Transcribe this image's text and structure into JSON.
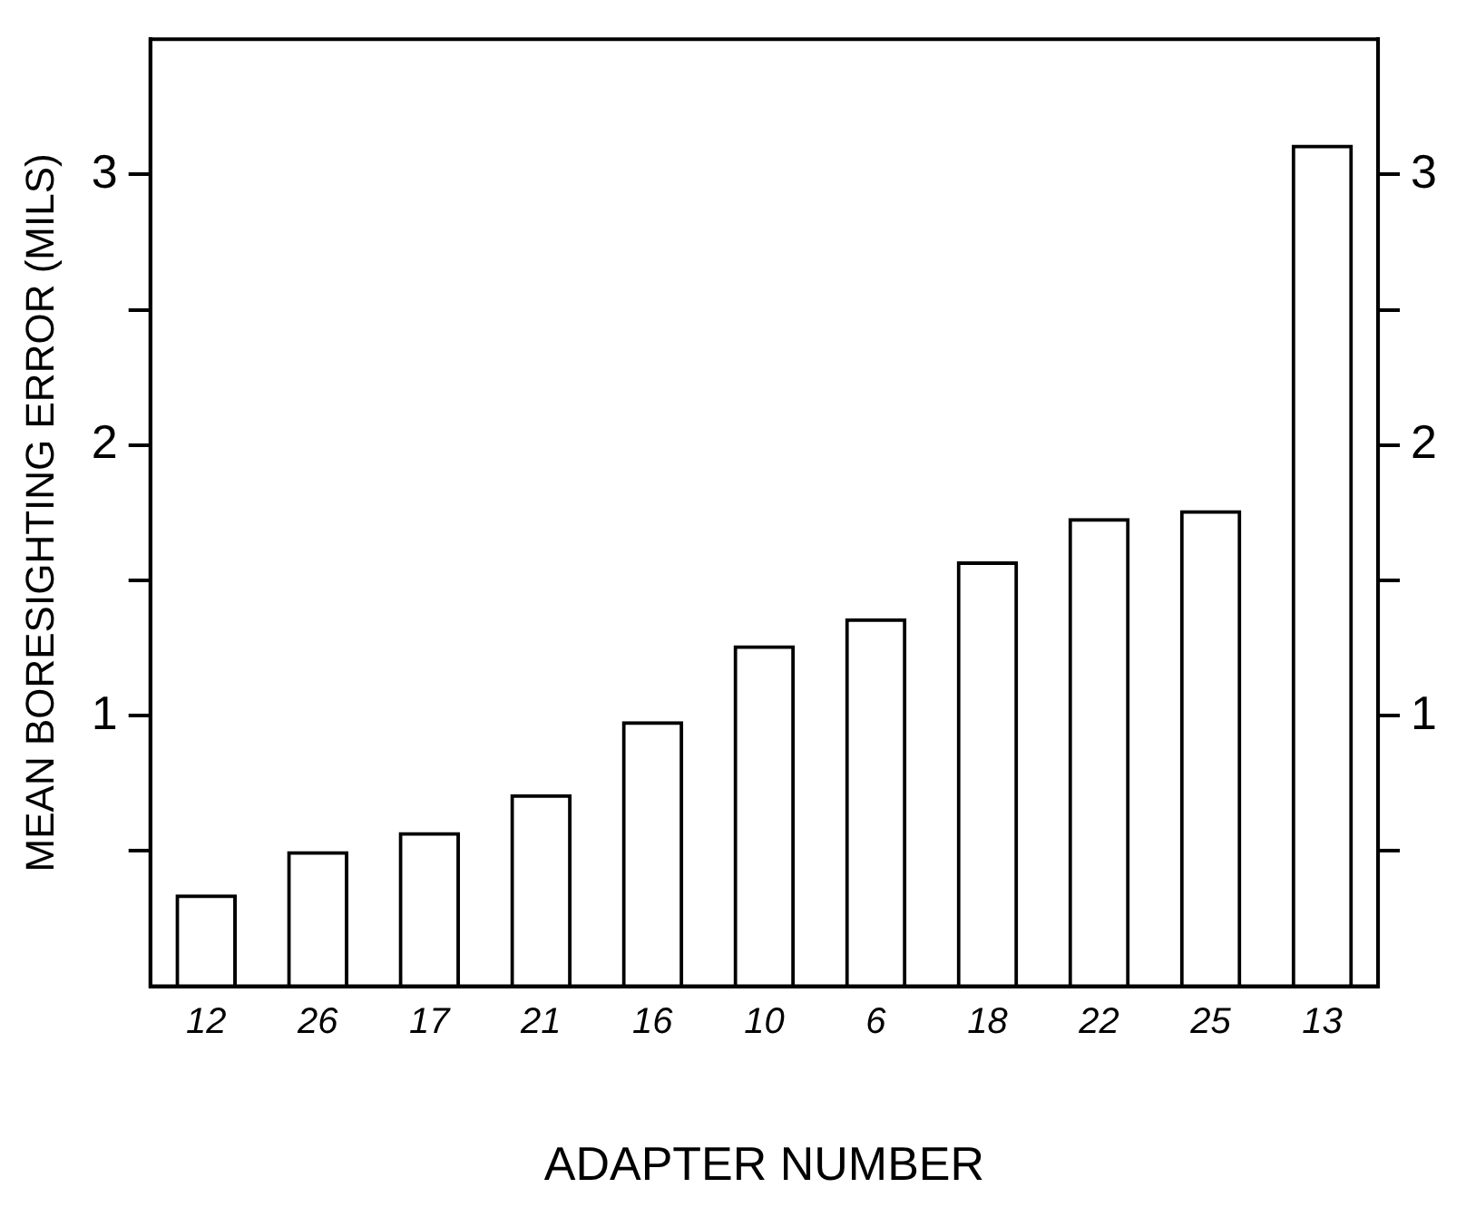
{
  "chart_data": {
    "type": "bar",
    "xlabel": "ADAPTER NUMBER",
    "ylabel": "MEAN BORESIGHTING ERROR (MILS)",
    "categories": [
      "12",
      "26",
      "17",
      "21",
      "16",
      "10",
      "6",
      "18",
      "22",
      "25",
      "13"
    ],
    "values": [
      0.34,
      0.5,
      0.57,
      0.71,
      0.98,
      1.26,
      1.36,
      1.57,
      1.73,
      1.76,
      3.11
    ],
    "color": "#000000",
    "ylim": [
      0,
      3.5
    ],
    "yticks": [
      {
        "value": 0.5,
        "label": null
      },
      1,
      {
        "value": 1.5,
        "label": null
      },
      2,
      {
        "value": 2.5,
        "label": null
      },
      3
    ],
    "y2lim": [
      0,
      3.5
    ],
    "y2ticks": [
      {
        "value": 0.5,
        "label": null
      },
      1,
      {
        "value": 1.5,
        "label": null
      },
      2,
      {
        "value": 2.5,
        "label": null
      },
      3
    ],
    "grid": false,
    "legend": false
  }
}
